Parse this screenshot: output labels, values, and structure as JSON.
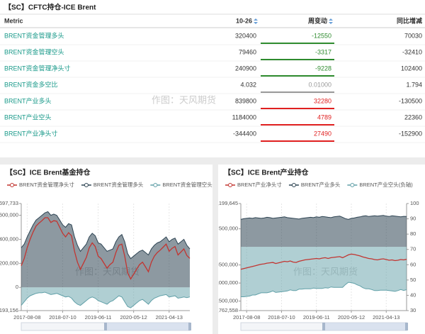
{
  "table": {
    "title": "【SC】CFTC持仓-ICE Brent",
    "columns": [
      "Metric",
      "10-26",
      "周变动",
      "同比增减"
    ],
    "rows": [
      [
        "BRENT资金管理多头",
        "320400",
        "-12550",
        "70030"
      ],
      [
        "BRENT资金管理空头",
        "79460",
        "-3317",
        "-32410"
      ],
      [
        "BRENT资金管理净头寸",
        "240900",
        "-9228",
        "102400"
      ],
      [
        "BRENT资金多空比",
        "4.032",
        "0.01000",
        "1.794"
      ],
      [
        "BRENT产业多头",
        "839800",
        "32280",
        "-130500"
      ],
      [
        "BRENT产业空头",
        "1184000",
        "4789",
        "22360"
      ],
      [
        "BRENT产业净头寸",
        "-344400",
        "27490",
        "-152900"
      ]
    ]
  },
  "watermark": "作图：天风期货",
  "chart_data": [
    {
      "type": "area",
      "title": "【SC】ICE Brent基金持仓",
      "grid": true,
      "x": [
        "2017-06-13",
        "2017-07-11",
        "2017-08-08",
        "2017-09-05",
        "2017-10-03",
        "2017-10-31",
        "2017-11-28",
        "2017-12-26",
        "2018-01-23",
        "2018-02-20",
        "2018-03-20",
        "2018-04-17",
        "2018-05-15",
        "2018-06-12",
        "2018-07-10",
        "2018-08-07",
        "2018-09-04",
        "2018-10-02",
        "2018-10-30",
        "2018-11-27",
        "2018-12-25",
        "2019-01-22",
        "2019-02-19",
        "2019-03-19",
        "2019-04-16",
        "2019-05-14",
        "2019-06-11",
        "2019-07-09",
        "2019-08-06",
        "2019-09-03",
        "2019-10-01",
        "2019-10-29",
        "2019-11-26",
        "2019-12-24",
        "2020-01-21",
        "2020-02-18",
        "2020-03-17",
        "2020-04-14",
        "2020-05-12",
        "2020-06-09",
        "2020-07-07",
        "2020-08-04",
        "2020-09-01",
        "2020-09-29",
        "2020-10-27",
        "2020-11-24",
        "2020-12-22",
        "2021-01-19",
        "2021-02-16",
        "2021-03-16",
        "2021-04-13",
        "2021-05-11",
        "2021-06-08",
        "2021-07-06",
        "2021-08-03",
        "2021-08-31",
        "2021-09-28",
        "2021-10-26"
      ],
      "xlim": [
        "2017-06-13",
        "2021-10-26"
      ],
      "xticks": [
        "2017-08-08",
        "2018-07-10",
        "2019-06-11",
        "2020-05-12",
        "2021-04-13"
      ],
      "ylim": [
        -193156,
        697733
      ],
      "yticks": [
        {
          "value": -193156,
          "label": "-193,156"
        },
        0,
        {
          "value": 200000,
          "label": "200,000"
        },
        {
          "value": 400000,
          "label": "400,000"
        },
        {
          "value": 600000,
          "label": "600,000"
        },
        {
          "value": 697733,
          "label": "697,733"
        }
      ],
      "series": [
        {
          "name": "BRENT资金管理净头寸",
          "color": "#c23531",
          "area": false,
          "values": [
            180000,
            240000,
            330000,
            400000,
            460000,
            510000,
            535000,
            555000,
            580000,
            580000,
            540000,
            555000,
            550000,
            500000,
            450000,
            420000,
            455000,
            430000,
            300000,
            210000,
            150000,
            200000,
            250000,
            330000,
            370000,
            340000,
            260000,
            240000,
            200000,
            160000,
            190000,
            210000,
            290000,
            350000,
            360000,
            260000,
            120000,
            70000,
            110000,
            150000,
            190000,
            210000,
            170000,
            130000,
            210000,
            260000,
            290000,
            310000,
            335000,
            360000,
            300000,
            325000,
            340000,
            270000,
            295000,
            320000,
            265000,
            240900
          ]
        },
        {
          "name": "BRENT资金管理多头",
          "color": "#2f4554",
          "area": true,
          "values": [
            330000,
            360000,
            420000,
            470000,
            520000,
            560000,
            580000,
            600000,
            620000,
            630000,
            600000,
            610000,
            600000,
            560000,
            520000,
            500000,
            530000,
            520000,
            420000,
            350000,
            300000,
            330000,
            360000,
            420000,
            450000,
            430000,
            370000,
            360000,
            330000,
            300000,
            310000,
            320000,
            380000,
            420000,
            440000,
            380000,
            280000,
            240000,
            260000,
            280000,
            300000,
            310000,
            290000,
            270000,
            320000,
            350000,
            370000,
            380000,
            400000,
            420000,
            380000,
            400000,
            410000,
            360000,
            380000,
            400000,
            350000,
            320400
          ]
        },
        {
          "name": "BRENT资金管理空头(负轴)",
          "color": "#61a0a8",
          "area": true,
          "values": [
            -150000,
            -120000,
            -90000,
            -70000,
            -60000,
            -50000,
            -45000,
            -45000,
            -40000,
            -50000,
            -60000,
            -55000,
            -50000,
            -60000,
            -70000,
            -80000,
            -75000,
            -90000,
            -120000,
            -140000,
            -150000,
            -130000,
            -110000,
            -90000,
            -80000,
            -90000,
            -110000,
            -120000,
            -130000,
            -140000,
            -120000,
            -110000,
            -90000,
            -70000,
            -80000,
            -120000,
            -160000,
            -170000,
            -150000,
            -130000,
            -110000,
            -100000,
            -120000,
            -140000,
            -110000,
            -90000,
            -80000,
            -70000,
            -65000,
            -60000,
            -80000,
            -75000,
            -70000,
            -90000,
            -85000,
            -80000,
            -85000,
            -79460
          ]
        }
      ]
    },
    {
      "type": "area",
      "title": "【SC】ICE Brent产业持仓",
      "grid": true,
      "x": [
        "2017-06-13",
        "2017-07-11",
        "2017-08-08",
        "2017-09-05",
        "2017-10-03",
        "2017-10-31",
        "2017-11-28",
        "2017-12-26",
        "2018-01-23",
        "2018-02-20",
        "2018-03-20",
        "2018-04-17",
        "2018-05-15",
        "2018-06-12",
        "2018-07-10",
        "2018-08-07",
        "2018-09-04",
        "2018-10-02",
        "2018-10-30",
        "2018-11-27",
        "2018-12-25",
        "2019-01-22",
        "2019-02-19",
        "2019-03-19",
        "2019-04-16",
        "2019-05-14",
        "2019-06-11",
        "2019-07-09",
        "2019-08-06",
        "2019-09-03",
        "2019-10-01",
        "2019-10-29",
        "2019-11-26",
        "2019-12-24",
        "2020-01-21",
        "2020-02-18",
        "2020-03-17",
        "2020-04-14",
        "2020-05-12",
        "2020-06-09",
        "2020-07-07",
        "2020-08-04",
        "2020-09-01",
        "2020-09-29",
        "2020-10-27",
        "2020-11-24",
        "2020-12-22",
        "2021-01-19",
        "2021-02-16",
        "2021-03-16",
        "2021-04-13",
        "2021-05-11",
        "2021-06-08",
        "2021-07-06",
        "2021-08-03",
        "2021-08-31",
        "2021-09-28",
        "2021-10-26"
      ],
      "xlim": [
        "2017-06-13",
        "2021-10-26"
      ],
      "xticks": [
        "2017-08-08",
        "2018-07-10",
        "2019-06-11",
        "2020-05-12",
        "2021-04-13"
      ],
      "ylim": [
        -1762558,
        1199645
      ],
      "yticks": [
        {
          "value": -1762558,
          "label": "-1,762,558"
        },
        {
          "value": -1500000,
          "label": "-1,500,000"
        },
        {
          "value": -1000000,
          "label": "-1,000,000"
        },
        {
          "value": -500000,
          "label": "-500,000"
        },
        {
          "value": 500000,
          "label": "500,000"
        },
        {
          "value": 1199645,
          "label": "1,199,645"
        }
      ],
      "y2lim": [
        30,
        100
      ],
      "y2ticks": [
        30,
        40,
        50,
        60,
        70,
        80,
        90,
        100
      ],
      "series": [
        {
          "name": "BRENT产业净头寸",
          "color": "#c23531",
          "area": false,
          "values": [
            -620000,
            -600000,
            -580000,
            -560000,
            -540000,
            -520000,
            -500000,
            -480000,
            -470000,
            -450000,
            -440000,
            -430000,
            -460000,
            -440000,
            -420000,
            -400000,
            -410000,
            -390000,
            -420000,
            -430000,
            -400000,
            -380000,
            -360000,
            -350000,
            -340000,
            -330000,
            -320000,
            -330000,
            -310000,
            -300000,
            -320000,
            -300000,
            -290000,
            -280000,
            -270000,
            -300000,
            -260000,
            -220000,
            -200000,
            -210000,
            -230000,
            -250000,
            -280000,
            -300000,
            -320000,
            -330000,
            -350000,
            -360000,
            -340000,
            -330000,
            -350000,
            -370000,
            -360000,
            -380000,
            -370000,
            -350000,
            -360000,
            -344400
          ]
        },
        {
          "name": "BRENT产业多头",
          "color": "#2f4554",
          "area": true,
          "values": [
            760000,
            780000,
            790000,
            800000,
            790000,
            810000,
            800000,
            790000,
            800000,
            820000,
            810000,
            790000,
            800000,
            810000,
            820000,
            830000,
            810000,
            800000,
            790000,
            780000,
            770000,
            790000,
            800000,
            810000,
            820000,
            810000,
            830000,
            820000,
            840000,
            830000,
            820000,
            810000,
            830000,
            840000,
            850000,
            820000,
            780000,
            760000,
            790000,
            800000,
            820000,
            830000,
            850000,
            860000,
            840000,
            850000,
            860000,
            850000,
            860000,
            870000,
            850000,
            840000,
            860000,
            850000,
            840000,
            830000,
            845000,
            839800
          ]
        },
        {
          "name": "BRENT产业空头(负轴)",
          "color": "#61a0a8",
          "area": true,
          "values": [
            -1380000,
            -1380000,
            -1370000,
            -1360000,
            -1330000,
            -1330000,
            -1300000,
            -1270000,
            -1270000,
            -1270000,
            -1250000,
            -1220000,
            -1260000,
            -1250000,
            -1240000,
            -1230000,
            -1220000,
            -1190000,
            -1210000,
            -1210000,
            -1170000,
            -1170000,
            -1160000,
            -1160000,
            -1160000,
            -1140000,
            -1150000,
            -1150000,
            -1150000,
            -1130000,
            -1140000,
            -1110000,
            -1120000,
            -1120000,
            -1120000,
            -1120000,
            -1040000,
            -980000,
            -990000,
            -1010000,
            -1050000,
            -1080000,
            -1130000,
            -1160000,
            -1160000,
            -1180000,
            -1210000,
            -1210000,
            -1200000,
            -1200000,
            -1200000,
            -1210000,
            -1220000,
            -1230000,
            -1210000,
            -1180000,
            -1205000,
            -1184000
          ]
        }
      ]
    }
  ]
}
